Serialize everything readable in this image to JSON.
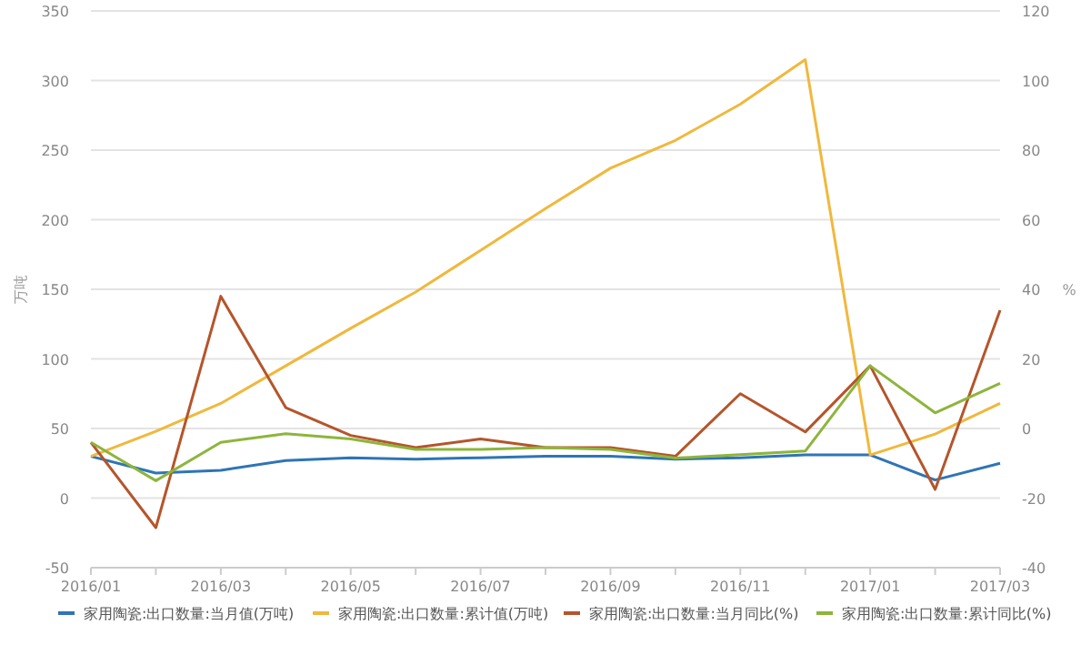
{
  "chart_data": {
    "type": "line",
    "ylabel": "万吨",
    "y2label": "%",
    "categories": [
      "2016/01",
      null,
      "2016/03",
      null,
      "2016/05",
      null,
      "2016/07",
      null,
      "2016/09",
      null,
      "2016/11",
      null,
      "2017/01",
      null,
      "2017/03"
    ],
    "ylim": [
      -50,
      350
    ],
    "yticks": [
      -50,
      0,
      50,
      100,
      150,
      200,
      250,
      300,
      350
    ],
    "y2lim": [
      -40,
      120
    ],
    "y2ticks": [
      -40,
      -20,
      0,
      20,
      40,
      60,
      80,
      100,
      120
    ],
    "grid": "y",
    "legend": "bottom",
    "marker": "none",
    "line_style": "solid",
    "series": [
      {
        "name": "家用陶瓷:出口数量:当月值(万吨)",
        "color": "#2e75b6",
        "values": [
          30,
          18,
          20,
          27,
          29,
          28,
          29,
          30,
          30,
          28,
          29,
          31,
          31,
          13,
          25
        ]
      },
      {
        "name": "家用陶瓷:出口数量:累计值(万吨)",
        "color": "#f0b83c",
        "values": [
          30,
          48,
          68,
          95,
          122,
          148,
          178,
          208,
          237,
          257,
          283,
          315,
          31,
          46,
          68
        ]
      },
      {
        "name": "家用陶瓷:出口数量:当月同比(%)",
        "color": "#b5552b",
        "axis": "y2",
        "values": [
          -4,
          -28.5,
          38,
          6,
          -2,
          -5.5,
          -3,
          -5.5,
          -5.5,
          -8,
          10,
          -1,
          18,
          -17.5,
          34
        ]
      },
      {
        "name": "家用陶瓷:出口数量:累计同比(%)",
        "color": "#8db53c",
        "axis": "y2",
        "values": [
          -4,
          -15,
          -4,
          -1.5,
          -3,
          -6,
          -6,
          -5.5,
          -6,
          -8.5,
          -7.5,
          -6.5,
          18,
          4.5,
          13
        ]
      }
    ]
  }
}
